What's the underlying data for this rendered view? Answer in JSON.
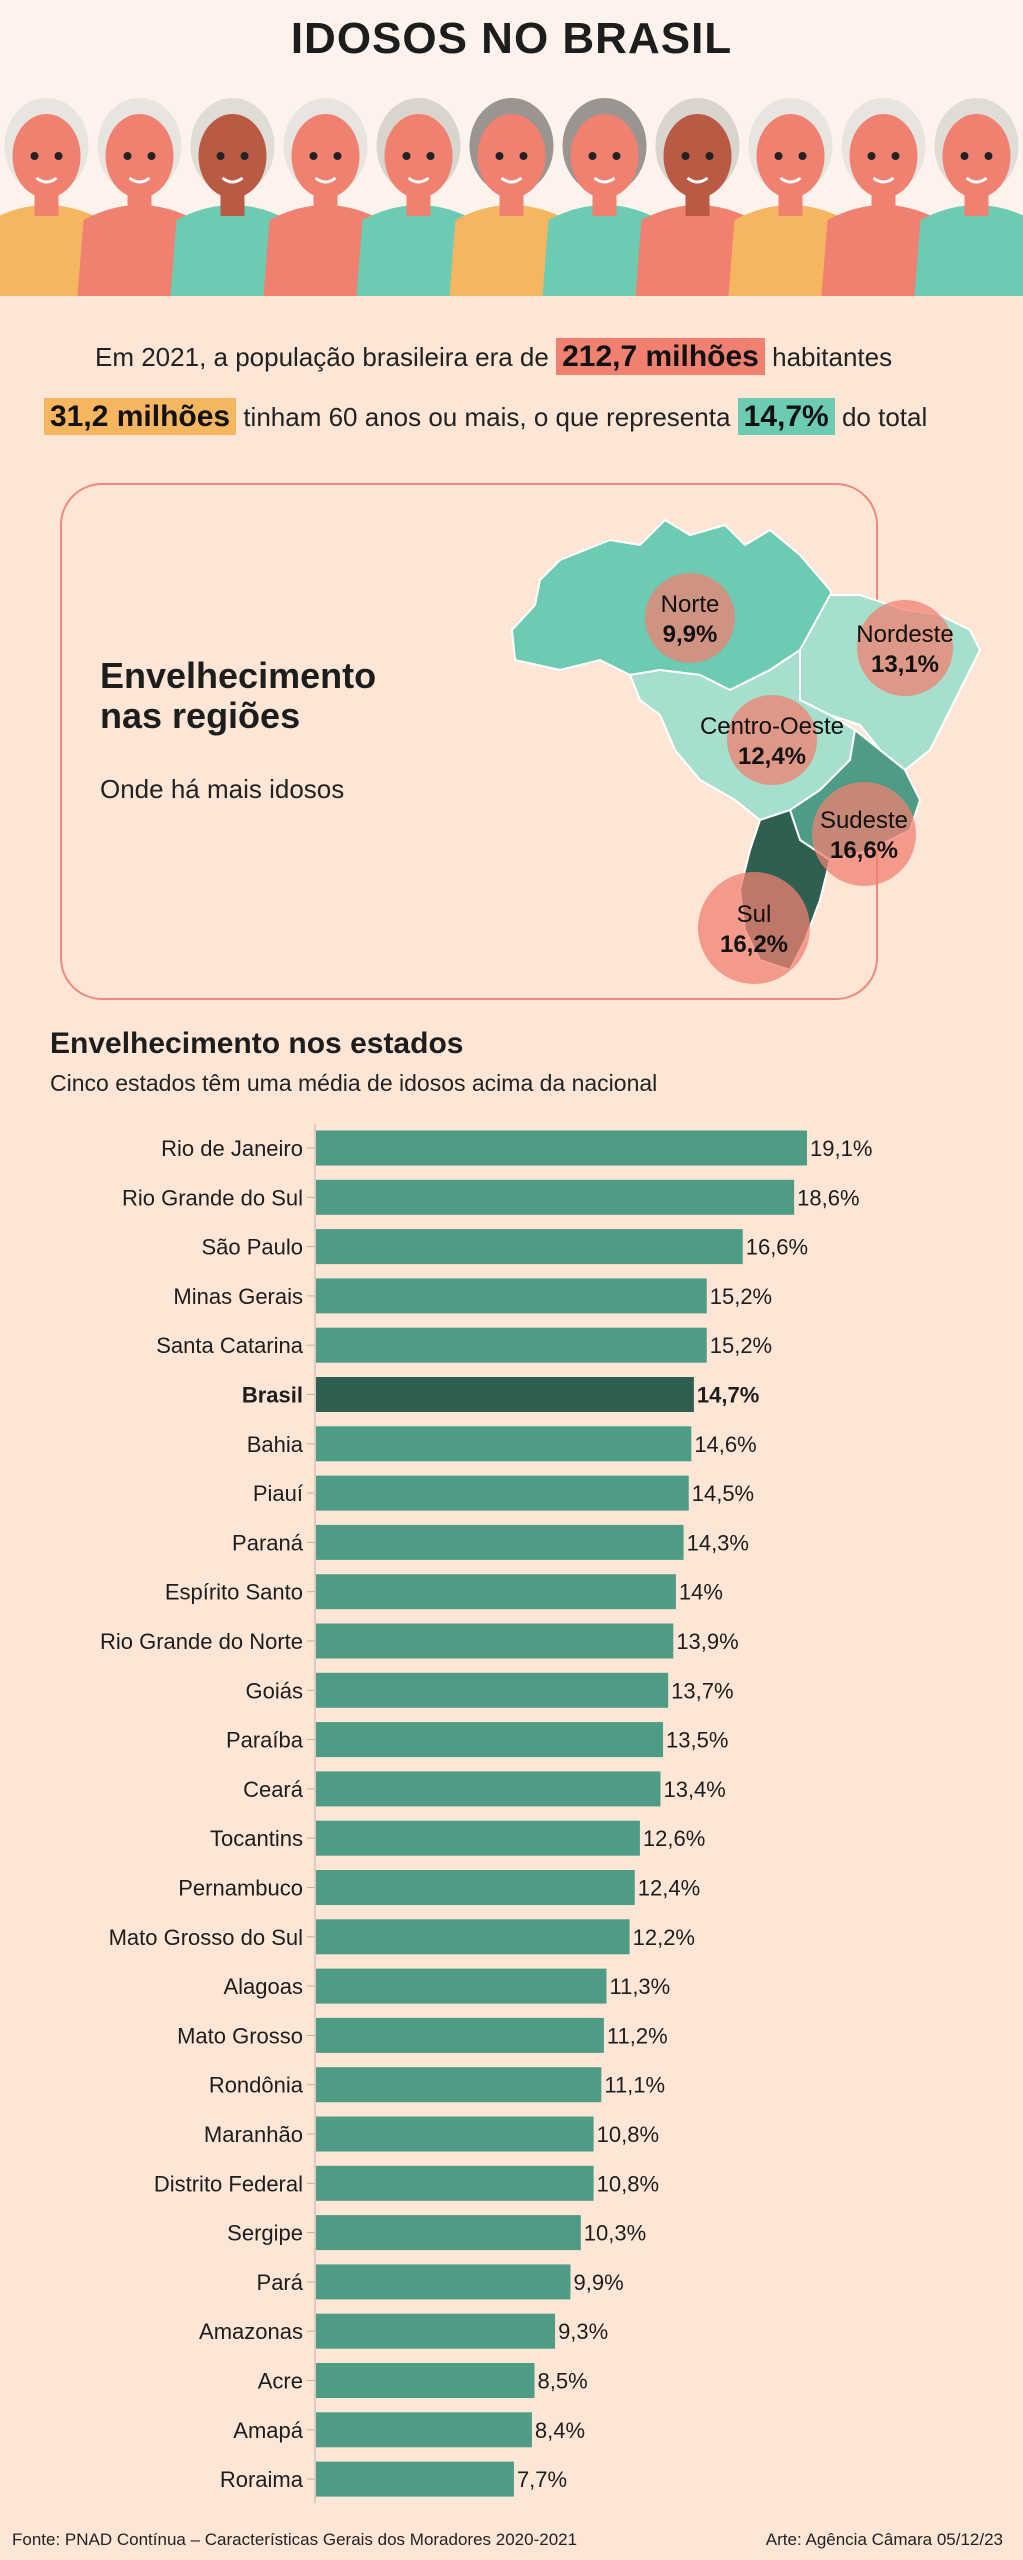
{
  "title": "IDOSOS NO BRASIL",
  "stats": {
    "line1_prefix": "Em 2021, a população brasileira era de",
    "population": "212,7 milhões",
    "line1_suffix": "habitantes",
    "elderly": "31,2 milhões",
    "line2_mid": "tinham 60 anos ou mais, o que representa",
    "share": "14,7%",
    "line2_suffix": "do total"
  },
  "regions": {
    "title": "Envelhecimento nas regiões",
    "subtitle": "Onde há mais idosos",
    "items": [
      {
        "name": "Norte",
        "value": "9,9%"
      },
      {
        "name": "Nordeste",
        "value": "13,1%"
      },
      {
        "name": "Centro-Oeste",
        "value": "12,4%"
      },
      {
        "name": "Sudeste",
        "value": "16,6%"
      },
      {
        "name": "Sul",
        "value": "16,2%"
      }
    ]
  },
  "states_section": {
    "title": "Envelhecimento nos estados",
    "subtitle": "Cinco estados têm uma média de idosos acima da nacional"
  },
  "chart_data": {
    "type": "bar",
    "orientation": "horizontal",
    "categories": [
      "Rio de Janeiro",
      "Rio Grande do Sul",
      "São Paulo",
      "Minas Gerais",
      "Santa Catarina",
      "Brasil",
      "Bahia",
      "Piauí",
      "Paraná",
      "Espírito Santo",
      "Rio Grande do Norte",
      "Goiás",
      "Paraíba",
      "Ceará",
      "Tocantins",
      "Pernambuco",
      "Mato Grosso do Sul",
      "Alagoas",
      "Mato Grosso",
      "Rondônia",
      "Maranhão",
      "Distrito Federal",
      "Sergipe",
      "Pará",
      "Amazonas",
      "Acre",
      "Amapá",
      "Roraima"
    ],
    "values": [
      19.1,
      18.6,
      16.6,
      15.2,
      15.2,
      14.7,
      14.6,
      14.5,
      14.3,
      14,
      13.9,
      13.7,
      13.5,
      13.4,
      12.6,
      12.4,
      12.2,
      11.3,
      11.2,
      11.1,
      10.8,
      10.8,
      10.3,
      9.9,
      9.3,
      8.5,
      8.4,
      7.7
    ],
    "value_labels": [
      "19,1%",
      "18,6%",
      "16,6%",
      "15,2%",
      "15,2%",
      "14,7%",
      "14,6%",
      "14,5%",
      "14,3%",
      "14%",
      "13,9%",
      "13,7%",
      "13,5%",
      "13,4%",
      "12,6%",
      "12,4%",
      "12,2%",
      "11,3%",
      "11,2%",
      "11,1%",
      "10,8%",
      "10,8%",
      "10,3%",
      "9,9%",
      "9,3%",
      "8,5%",
      "8,4%",
      "7,7%"
    ],
    "highlight": "Brasil",
    "xlim": [
      0,
      19.1
    ],
    "colors": {
      "bar": "#4e9c86",
      "highlight": "#2e5f50"
    }
  },
  "footer": {
    "source": "Fonte: PNAD Contínua – Características Gerais dos Moradores 2020-2021",
    "credit": "Arte: Agência Câmara 05/12/23"
  },
  "colors": {
    "background": "#fde6d6",
    "accent_red": "#f08070",
    "accent_yellow": "#f6b660",
    "accent_teal": "#6ccbb2"
  }
}
